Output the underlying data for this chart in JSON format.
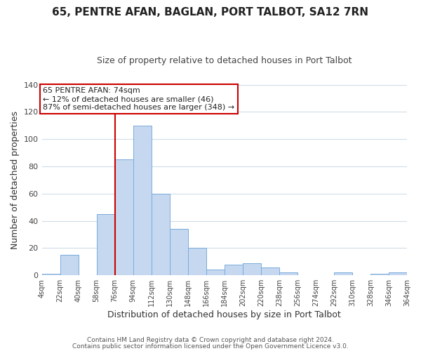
{
  "title": "65, PENTRE AFAN, BAGLAN, PORT TALBOT, SA12 7RN",
  "subtitle": "Size of property relative to detached houses in Port Talbot",
  "xlabel": "Distribution of detached houses by size in Port Talbot",
  "ylabel": "Number of detached properties",
  "bins": [
    4,
    22,
    40,
    58,
    76,
    94,
    112,
    130,
    148,
    166,
    184,
    202,
    220,
    238,
    256,
    274,
    292,
    310,
    328,
    346,
    364
  ],
  "counts": [
    1,
    15,
    0,
    45,
    85,
    110,
    60,
    34,
    20,
    4,
    8,
    9,
    6,
    2,
    0,
    0,
    2,
    0,
    1,
    2
  ],
  "bar_color": "#c5d8f0",
  "bar_edge_color": "#7aabdb",
  "vline_x": 76,
  "vline_color": "#cc0000",
  "annotation_line1": "65 PENTRE AFAN: 74sqm",
  "annotation_line2": "← 12% of detached houses are smaller (46)",
  "annotation_line3": "87% of semi-detached houses are larger (348) →",
  "annotation_box_color": "#cc0000",
  "ylim": [
    0,
    140
  ],
  "yticks": [
    0,
    20,
    40,
    60,
    80,
    100,
    120,
    140
  ],
  "tick_labels": [
    "4sqm",
    "22sqm",
    "40sqm",
    "58sqm",
    "76sqm",
    "94sqm",
    "112sqm",
    "130sqm",
    "148sqm",
    "166sqm",
    "184sqm",
    "202sqm",
    "220sqm",
    "238sqm",
    "256sqm",
    "274sqm",
    "292sqm",
    "310sqm",
    "328sqm",
    "346sqm",
    "364sqm"
  ],
  "footer1": "Contains HM Land Registry data © Crown copyright and database right 2024.",
  "footer2": "Contains public sector information licensed under the Open Government Licence v3.0.",
  "background_color": "#ffffff",
  "grid_color": "#d0dce8",
  "title_fontsize": 11,
  "subtitle_fontsize": 9
}
